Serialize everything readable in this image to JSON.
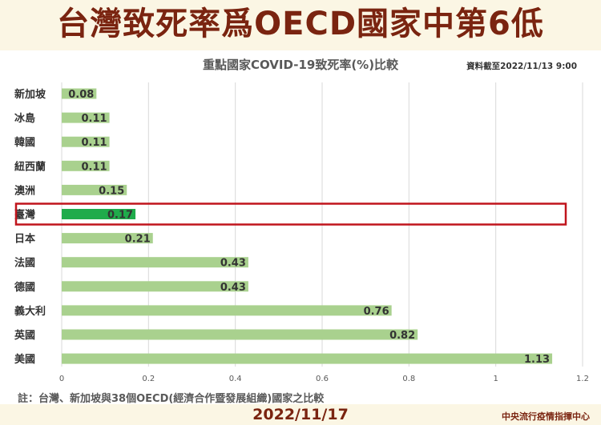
{
  "headline": "台灣致死率爲OECD國家中第6低",
  "subtitle": "重點國家COVID-19致死率(%)比較",
  "timestamp": "資料截至2022/11/13 9:00",
  "footnote": "註：台灣、新加坡與38個OECD(經濟合作暨發展組織)國家之比較",
  "date": "2022/11/17",
  "source": "中央流行疫情指揮中心",
  "colors": {
    "bar": "#a9d18e",
    "highlight_bar": "#1fab4b",
    "highlight_box": "#c0141c",
    "headline": "#7a2410"
  },
  "chart_data": {
    "type": "bar",
    "orientation": "horizontal",
    "title": "重點國家COVID-19致死率(%)比較",
    "categories": [
      "新加坡",
      "冰島",
      "韓國",
      "紐西蘭",
      "澳洲",
      "臺灣",
      "日本",
      "法國",
      "德國",
      "義大利",
      "英國",
      "美國"
    ],
    "values": [
      0.08,
      0.11,
      0.11,
      0.11,
      0.15,
      0.17,
      0.21,
      0.43,
      0.43,
      0.76,
      0.82,
      1.13
    ],
    "data_labels": [
      "0.08",
      "0.11",
      "0.11",
      "0.11",
      "0.15",
      "0.17",
      "0.21",
      "0.43",
      "0.43",
      "0.76",
      "0.82",
      "1.13"
    ],
    "highlight": "臺灣",
    "xlim": [
      0,
      1.2
    ],
    "xticks": [
      "0",
      "0.2",
      "0.4",
      "0.6",
      "0.8",
      "1",
      "1.2"
    ],
    "grid": true
  }
}
